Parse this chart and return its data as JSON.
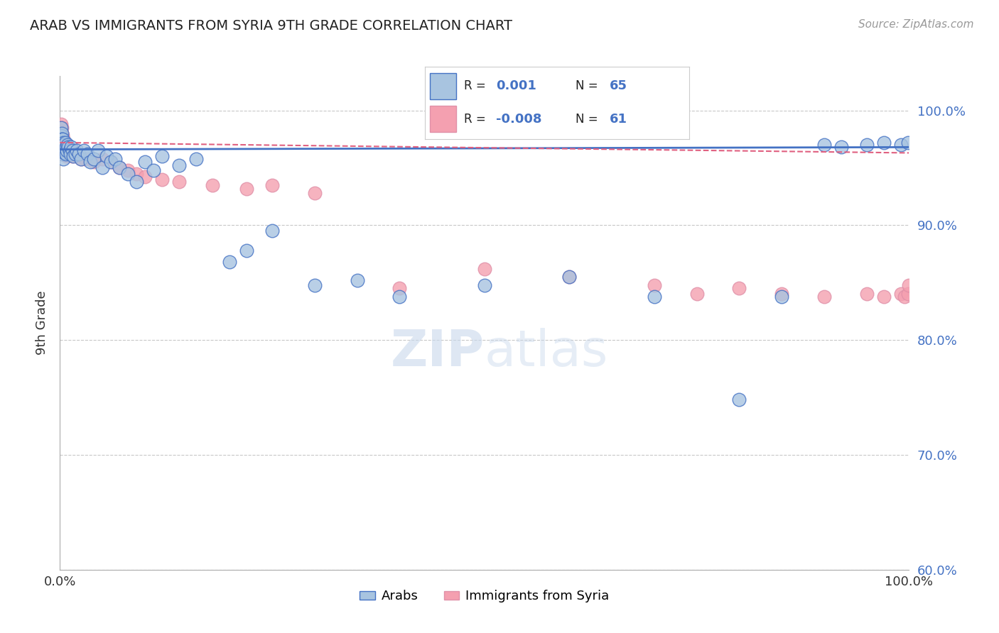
{
  "title": "ARAB VS IMMIGRANTS FROM SYRIA 9TH GRADE CORRELATION CHART",
  "source": "Source: ZipAtlas.com",
  "ylabel": "9th Grade",
  "legend_arab": "Arabs",
  "legend_syria": "Immigrants from Syria",
  "arab_R": "0.001",
  "arab_N": "65",
  "syria_R": "-0.008",
  "syria_N": "61",
  "arab_color": "#a8c4e0",
  "syria_color": "#f4a0b0",
  "arab_line_color": "#4472c4",
  "syria_line_color": "#e06080",
  "grid_color": "#c8c8c8",
  "ytick_labels": [
    "100.0%",
    "90.0%",
    "80.0%",
    "70.0%",
    "60.0%"
  ],
  "ytick_values": [
    1.0,
    0.9,
    0.8,
    0.7,
    0.6
  ],
  "arab_x": [
    0.001,
    0.001,
    0.001,
    0.002,
    0.002,
    0.002,
    0.002,
    0.003,
    0.003,
    0.003,
    0.004,
    0.004,
    0.004,
    0.005,
    0.005,
    0.006,
    0.006,
    0.007,
    0.007,
    0.008,
    0.009,
    0.01,
    0.011,
    0.012,
    0.013,
    0.015,
    0.016,
    0.018,
    0.02,
    0.022,
    0.025,
    0.028,
    0.032,
    0.036,
    0.04,
    0.045,
    0.05,
    0.055,
    0.06,
    0.065,
    0.07,
    0.08,
    0.09,
    0.1,
    0.11,
    0.12,
    0.14,
    0.16,
    0.2,
    0.22,
    0.25,
    0.3,
    0.35,
    0.4,
    0.5,
    0.6,
    0.7,
    0.8,
    0.85,
    0.9,
    0.92,
    0.95,
    0.97,
    0.99,
    0.999
  ],
  "arab_y": [
    0.985,
    0.978,
    0.972,
    0.98,
    0.975,
    0.97,
    0.965,
    0.975,
    0.968,
    0.962,
    0.972,
    0.965,
    0.958,
    0.97,
    0.963,
    0.972,
    0.965,
    0.968,
    0.962,
    0.965,
    0.97,
    0.968,
    0.965,
    0.962,
    0.968,
    0.965,
    0.96,
    0.962,
    0.965,
    0.962,
    0.958,
    0.965,
    0.962,
    0.955,
    0.958,
    0.965,
    0.95,
    0.96,
    0.955,
    0.958,
    0.95,
    0.945,
    0.938,
    0.955,
    0.948,
    0.96,
    0.952,
    0.958,
    0.868,
    0.878,
    0.895,
    0.848,
    0.852,
    0.838,
    0.848,
    0.855,
    0.838,
    0.748,
    0.838,
    0.97,
    0.968,
    0.97,
    0.972,
    0.97,
    0.972
  ],
  "syria_x": [
    0.001,
    0.001,
    0.001,
    0.001,
    0.002,
    0.002,
    0.002,
    0.002,
    0.002,
    0.003,
    0.003,
    0.003,
    0.004,
    0.004,
    0.004,
    0.005,
    0.005,
    0.005,
    0.006,
    0.006,
    0.007,
    0.007,
    0.008,
    0.008,
    0.009,
    0.01,
    0.011,
    0.012,
    0.013,
    0.015,
    0.018,
    0.02,
    0.025,
    0.03,
    0.04,
    0.05,
    0.06,
    0.07,
    0.08,
    0.09,
    0.1,
    0.12,
    0.14,
    0.18,
    0.22,
    0.25,
    0.3,
    0.4,
    0.5,
    0.6,
    0.7,
    0.75,
    0.8,
    0.85,
    0.9,
    0.95,
    0.97,
    0.99,
    0.995,
    0.999,
    0.9999
  ],
  "syria_y": [
    0.988,
    0.982,
    0.978,
    0.972,
    0.985,
    0.98,
    0.975,
    0.97,
    0.966,
    0.978,
    0.973,
    0.968,
    0.975,
    0.97,
    0.965,
    0.972,
    0.967,
    0.962,
    0.97,
    0.965,
    0.968,
    0.963,
    0.965,
    0.96,
    0.963,
    0.968,
    0.965,
    0.962,
    0.965,
    0.96,
    0.962,
    0.96,
    0.958,
    0.958,
    0.955,
    0.958,
    0.955,
    0.95,
    0.948,
    0.945,
    0.942,
    0.94,
    0.938,
    0.935,
    0.932,
    0.935,
    0.928,
    0.845,
    0.862,
    0.855,
    0.848,
    0.84,
    0.845,
    0.84,
    0.838,
    0.84,
    0.838,
    0.84,
    0.838,
    0.84,
    0.848
  ],
  "watermark_text": "ZIPatlas",
  "watermark_color": "#d0dff0",
  "watermark_zip_color": "#b0c8e8"
}
